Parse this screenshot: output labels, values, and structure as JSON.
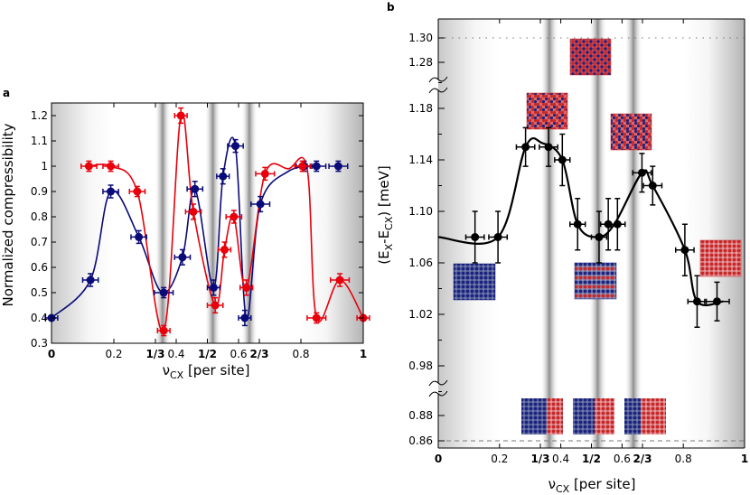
{
  "chart_data": [
    {
      "panel": "a",
      "type": "scatter",
      "xlabel_main": "ν",
      "xlabel_sub": "CX",
      "xlabel_rest": " [per site]",
      "ylabel": "Normalized compressibility",
      "xlim": [
        0,
        1
      ],
      "ylim": [
        0.3,
        1.25
      ],
      "xticks": [
        {
          "value": 0,
          "label": "0",
          "bold": true
        },
        {
          "value": 0.2,
          "label": "0.2",
          "bold": false
        },
        {
          "value": 0.3333,
          "label": "1/3",
          "bold": true
        },
        {
          "value": 0.4,
          "label": "0.4",
          "bold": false
        },
        {
          "value": 0.5,
          "label": "1/2",
          "bold": true
        },
        {
          "value": 0.6,
          "label": "0.6",
          "bold": false
        },
        {
          "value": 0.6667,
          "label": "2/3",
          "bold": true
        },
        {
          "value": 0.8,
          "label": "0.8",
          "bold": false
        },
        {
          "value": 1,
          "label": "1",
          "bold": true
        }
      ],
      "yticks": [
        {
          "value": 0.3,
          "label": "0.3"
        },
        {
          "value": 0.4,
          "label": "0.4"
        },
        {
          "value": 0.5,
          "label": "0.5"
        },
        {
          "value": 0.6,
          "label": "0.6"
        },
        {
          "value": 0.7,
          "label": "0.7"
        },
        {
          "value": 0.8,
          "label": "0.8"
        },
        {
          "value": 0.9,
          "label": "0.9"
        },
        {
          "value": 1.0,
          "label": "1"
        },
        {
          "value": 1.1,
          "label": "1.1"
        },
        {
          "value": 1.2,
          "label": "1.2"
        }
      ],
      "gaps": [
        0.3333,
        0.5,
        0.6667
      ],
      "series": [
        {
          "color": "#0a0a78",
          "points": [
            {
              "x": 0.0,
              "y": 0.4,
              "xerr": 0.02,
              "yerr": 0.0
            },
            {
              "x": 0.125,
              "y": 0.55,
              "xerr": 0.025,
              "yerr": 0.025
            },
            {
              "x": 0.19,
              "y": 0.9,
              "xerr": 0.025,
              "yerr": 0.025
            },
            {
              "x": 0.28,
              "y": 0.72,
              "xerr": 0.025,
              "yerr": 0.025
            },
            {
              "x": 0.36,
              "y": 0.5,
              "xerr": 0.03,
              "yerr": 0.02
            },
            {
              "x": 0.42,
              "y": 0.64,
              "xerr": 0.025,
              "yerr": 0.03
            },
            {
              "x": 0.46,
              "y": 0.91,
              "xerr": 0.025,
              "yerr": 0.03
            },
            {
              "x": 0.52,
              "y": 0.52,
              "xerr": 0.02,
              "yerr": 0.03
            },
            {
              "x": 0.55,
              "y": 0.96,
              "xerr": 0.02,
              "yerr": 0.03
            },
            {
              "x": 0.59,
              "y": 1.08,
              "xerr": 0.025,
              "yerr": 0.025
            },
            {
              "x": 0.62,
              "y": 0.4,
              "xerr": 0.02,
              "yerr": 0.03
            },
            {
              "x": 0.67,
              "y": 0.85,
              "xerr": 0.03,
              "yerr": 0.03
            },
            {
              "x": 0.81,
              "y": 1.0,
              "xerr": 0.025,
              "yerr": 0.02
            },
            {
              "x": 0.85,
              "y": 1.0,
              "xerr": 0.03,
              "yerr": 0.02
            },
            {
              "x": 0.92,
              "y": 1.0,
              "xerr": 0.03,
              "yerr": 0.02
            }
          ],
          "curve": [
            [
              0.0,
              0.4
            ],
            [
              0.125,
              0.55
            ],
            [
              0.19,
              0.9
            ],
            [
              0.28,
              0.72
            ],
            [
              0.355,
              0.5
            ],
            [
              0.42,
              0.64
            ],
            [
              0.46,
              0.91
            ],
            [
              0.52,
              0.52
            ],
            [
              0.55,
              0.96
            ],
            [
              0.59,
              1.08
            ],
            [
              0.625,
              0.4
            ],
            [
              0.67,
              0.85
            ],
            [
              0.76,
              0.98
            ],
            [
              0.85,
              1.0
            ]
          ]
        },
        {
          "color": "#e8000b",
          "points": [
            {
              "x": 0.12,
              "y": 1.0,
              "xerr": 0.025,
              "yerr": 0.02
            },
            {
              "x": 0.19,
              "y": 1.0,
              "xerr": 0.025,
              "yerr": 0.02
            },
            {
              "x": 0.275,
              "y": 0.9,
              "xerr": 0.025,
              "yerr": 0.02
            },
            {
              "x": 0.36,
              "y": 0.35,
              "xerr": 0.02,
              "yerr": 0.02
            },
            {
              "x": 0.415,
              "y": 1.2,
              "xerr": 0.02,
              "yerr": 0.03
            },
            {
              "x": 0.455,
              "y": 0.82,
              "xerr": 0.025,
              "yerr": 0.03
            },
            {
              "x": 0.525,
              "y": 0.45,
              "xerr": 0.025,
              "yerr": 0.03
            },
            {
              "x": 0.555,
              "y": 0.67,
              "xerr": 0.02,
              "yerr": 0.03
            },
            {
              "x": 0.585,
              "y": 0.8,
              "xerr": 0.025,
              "yerr": 0.025
            },
            {
              "x": 0.625,
              "y": 0.52,
              "xerr": 0.02,
              "yerr": 0.03
            },
            {
              "x": 0.685,
              "y": 0.97,
              "xerr": 0.03,
              "yerr": 0.025
            },
            {
              "x": 0.805,
              "y": 1.0,
              "xerr": 0.025,
              "yerr": 0.02
            },
            {
              "x": 0.85,
              "y": 0.4,
              "xerr": 0.03,
              "yerr": 0.02
            },
            {
              "x": 0.925,
              "y": 0.55,
              "xerr": 0.03,
              "yerr": 0.025
            },
            {
              "x": 1.0,
              "y": 0.4,
              "xerr": 0.02,
              "yerr": 0.0
            }
          ],
          "curve": [
            [
              0.12,
              1.0
            ],
            [
              0.19,
              1.0
            ],
            [
              0.275,
              0.9
            ],
            [
              0.36,
              0.35
            ],
            [
              0.415,
              1.2
            ],
            [
              0.455,
              0.82
            ],
            [
              0.525,
              0.45
            ],
            [
              0.555,
              0.67
            ],
            [
              0.585,
              0.8
            ],
            [
              0.625,
              0.52
            ],
            [
              0.685,
              0.97
            ],
            [
              0.76,
              0.99
            ],
            [
              0.82,
              0.99
            ],
            [
              0.85,
              0.4
            ],
            [
              0.925,
              0.55
            ],
            [
              1.0,
              0.4
            ]
          ]
        }
      ]
    },
    {
      "panel": "b",
      "type": "scatter",
      "xlabel_main": "ν",
      "xlabel_sub": "CX",
      "xlabel_rest": " [per site]",
      "ylabel_main": "(E",
      "ylabel_sub1": "X",
      "ylabel_mid": "-E",
      "ylabel_sub2": "CX",
      "ylabel_rest": ") [meV]",
      "xlim": [
        0,
        1
      ],
      "xticks": [
        {
          "value": 0,
          "label": "0",
          "bold": true
        },
        {
          "value": 0.2,
          "label": "0.2",
          "bold": false
        },
        {
          "value": 0.3333,
          "label": "1/3",
          "bold": true
        },
        {
          "value": 0.4,
          "label": "0.4",
          "bold": false
        },
        {
          "value": 0.5,
          "label": "1/2",
          "bold": true
        },
        {
          "value": 0.6,
          "label": "0.6",
          "bold": false
        },
        {
          "value": 0.6667,
          "label": "2/3",
          "bold": true
        },
        {
          "value": 0.8,
          "label": "0.8",
          "bold": false
        },
        {
          "value": 1,
          "label": "1",
          "bold": true
        }
      ],
      "yticks_bottom": [
        {
          "value": 0.86,
          "label": "0.86"
        },
        {
          "value": 0.88,
          "label": "0.88"
        }
      ],
      "yticks_middle": [
        {
          "value": 0.98,
          "label": "0.98"
        },
        {
          "value": 1.02,
          "label": "1.02"
        },
        {
          "value": 1.06,
          "label": "1.06"
        },
        {
          "value": 1.1,
          "label": "1.10"
        },
        {
          "value": 1.14,
          "label": "1.14"
        },
        {
          "value": 1.18,
          "label": "1.18"
        }
      ],
      "yticks_top": [
        {
          "value": 1.28,
          "label": "1.28"
        },
        {
          "value": 1.3,
          "label": "1.30"
        }
      ],
      "hline_top": 1.3,
      "hline_bottom": 0.86,
      "gaps": [
        0.3333,
        0.5,
        0.6667
      ],
      "series": [
        {
          "color": "#000000",
          "points": [
            {
              "x": 0.12,
              "y": 1.08,
              "xerr": 0.03,
              "yerr": 0.02
            },
            {
              "x": 0.195,
              "y": 1.08,
              "xerr": 0.03,
              "yerr": 0.02
            },
            {
              "x": 0.285,
              "y": 1.15,
              "xerr": 0.03,
              "yerr": 0.015
            },
            {
              "x": 0.36,
              "y": 1.15,
              "xerr": 0.03,
              "yerr": 0.015
            },
            {
              "x": 0.405,
              "y": 1.14,
              "xerr": 0.025,
              "yerr": 0.02
            },
            {
              "x": 0.455,
              "y": 1.09,
              "xerr": 0.025,
              "yerr": 0.02
            },
            {
              "x": 0.525,
              "y": 1.08,
              "xerr": 0.025,
              "yerr": 0.02
            },
            {
              "x": 0.555,
              "y": 1.09,
              "xerr": 0.025,
              "yerr": 0.02
            },
            {
              "x": 0.585,
              "y": 1.09,
              "xerr": 0.025,
              "yerr": 0.02
            },
            {
              "x": 0.665,
              "y": 1.13,
              "xerr": 0.03,
              "yerr": 0.015
            },
            {
              "x": 0.7,
              "y": 1.12,
              "xerr": 0.03,
              "yerr": 0.015
            },
            {
              "x": 0.805,
              "y": 1.07,
              "xerr": 0.03,
              "yerr": 0.02
            },
            {
              "x": 0.845,
              "y": 1.03,
              "xerr": 0.03,
              "yerr": 0.02
            },
            {
              "x": 0.91,
              "y": 1.03,
              "xerr": 0.04,
              "yerr": 0.015
            }
          ],
          "curve": [
            [
              0.0,
              1.08
            ],
            [
              0.195,
              1.08
            ],
            [
              0.285,
              1.15
            ],
            [
              0.34,
              1.153
            ],
            [
              0.405,
              1.14
            ],
            [
              0.455,
              1.09
            ],
            [
              0.52,
              1.08
            ],
            [
              0.575,
              1.09
            ],
            [
              0.665,
              1.13
            ],
            [
              0.7,
              1.12
            ],
            [
              0.805,
              1.07
            ],
            [
              0.845,
              1.03
            ],
            [
              0.93,
              1.03
            ]
          ]
        }
      ]
    }
  ]
}
